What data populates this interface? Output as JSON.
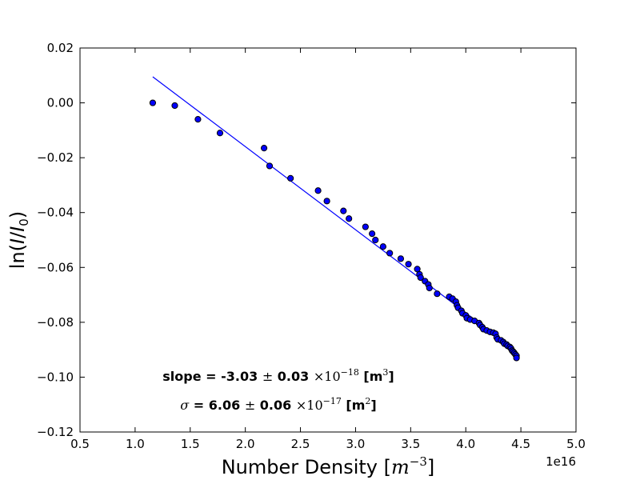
{
  "chart_data": {
    "type": "scatter",
    "xlabel_text": "Number Density",
    "xlabel_unit": "m",
    "xlabel_unit_exp": "−3",
    "ylabel_prefix": "ln(",
    "ylabel_I": "I",
    "ylabel_I0": "I",
    "ylabel_I0_sub": "0",
    "ylabel_suffix": ")",
    "x_offset_label": "1e16",
    "xlim": [
      0.5,
      5.0
    ],
    "ylim": [
      -0.12,
      0.02
    ],
    "x_ticks": [
      0.5,
      1.0,
      1.5,
      2.0,
      2.5,
      3.0,
      3.5,
      4.0,
      4.5,
      5.0
    ],
    "x_tick_labels": [
      "0.5",
      "1.0",
      "1.5",
      "2.0",
      "2.5",
      "3.0",
      "3.5",
      "4.0",
      "4.5",
      "5.0"
    ],
    "y_ticks": [
      0.02,
      0.0,
      -0.02,
      -0.04,
      -0.06,
      -0.08,
      -0.1,
      -0.12
    ],
    "y_tick_labels": [
      "0.02",
      "0.00",
      "−0.02",
      "−0.04",
      "−0.06",
      "−0.08",
      "−0.10",
      "−0.12"
    ],
    "grid": false,
    "series": [
      {
        "kind": "scatter",
        "color": "#0000ff",
        "edge_color": "#000000",
        "x": [
          1.16,
          1.36,
          1.57,
          1.77,
          2.17,
          2.22,
          2.41,
          2.66,
          2.74,
          2.89,
          2.94,
          3.09,
          3.15,
          3.18,
          3.25,
          3.31,
          3.41,
          3.48,
          3.56,
          3.58,
          3.59,
          3.63,
          3.66,
          3.67,
          3.74,
          3.85,
          3.88,
          3.91,
          3.92,
          3.93,
          3.96,
          3.97,
          4.0,
          4.01,
          4.04,
          4.08,
          4.12,
          4.13,
          4.15,
          4.16,
          4.19,
          4.22,
          4.25,
          4.27,
          4.28,
          4.29,
          4.32,
          4.34,
          4.35,
          4.37,
          4.38,
          4.4,
          4.41,
          4.42,
          4.43,
          4.44,
          4.45,
          4.46,
          4.46
        ],
        "y": [
          0.0,
          -0.001,
          -0.006,
          -0.011,
          -0.0165,
          -0.023,
          -0.0275,
          -0.032,
          -0.0358,
          -0.0394,
          -0.0422,
          -0.0452,
          -0.0477,
          -0.05,
          -0.0524,
          -0.0548,
          -0.0568,
          -0.0588,
          -0.0606,
          -0.0625,
          -0.0637,
          -0.065,
          -0.0662,
          -0.0675,
          -0.0696,
          -0.0707,
          -0.0714,
          -0.0725,
          -0.0738,
          -0.0747,
          -0.0758,
          -0.0767,
          -0.0775,
          -0.0785,
          -0.079,
          -0.0795,
          -0.0803,
          -0.081,
          -0.0818,
          -0.0825,
          -0.083,
          -0.0835,
          -0.0838,
          -0.0842,
          -0.0855,
          -0.0862,
          -0.0866,
          -0.0872,
          -0.0878,
          -0.0881,
          -0.0886,
          -0.089,
          -0.0895,
          -0.0903,
          -0.0907,
          -0.0912,
          -0.0917,
          -0.0922,
          -0.093
        ]
      },
      {
        "kind": "fit-line",
        "color": "#0000ff",
        "x": [
          1.16,
          4.46
        ],
        "y": [
          0.0095,
          -0.0905
        ]
      }
    ],
    "annotations": {
      "slope_prefix": "slope = -3.03",
      "slope_pm": "±",
      "slope_err": "0.03",
      "slope_times": "×10",
      "slope_exp": "−18",
      "slope_unit_open": "[m",
      "slope_unit_exp": "3",
      "slope_unit_close": "]",
      "sigma_symbol": "σ",
      "sigma_prefix": "= 6.06",
      "sigma_pm": "±",
      "sigma_err": "0.06",
      "sigma_times": "×10",
      "sigma_exp": "−17",
      "sigma_unit_open": "[m",
      "sigma_unit_exp": "2",
      "sigma_unit_close": "]"
    }
  }
}
